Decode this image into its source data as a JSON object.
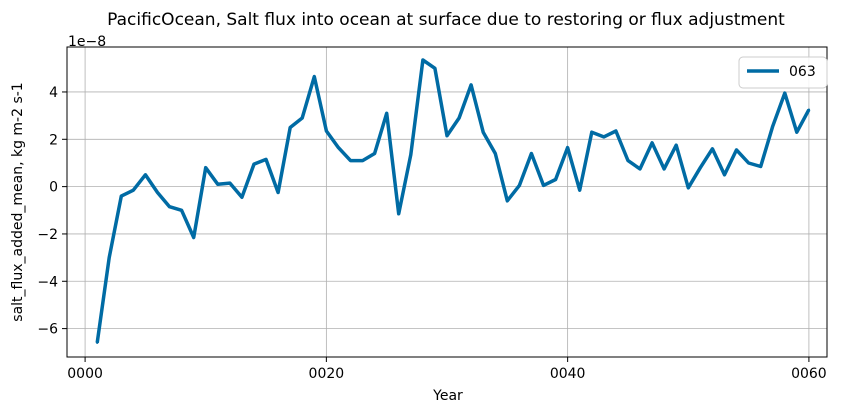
{
  "chart_data": {
    "type": "line",
    "title": "PacificOcean, Salt flux into ocean at surface due to restoring or flux adjustment",
    "xlabel": "Year",
    "ylabel": "salt_flux_added_mean, kg m-2 s-1",
    "y_offset_label": "1e−8",
    "xlim": [
      -1.5,
      61.5
    ],
    "ylim": [
      -7.2,
      5.9
    ],
    "x_ticks": [
      0,
      20,
      40,
      60
    ],
    "x_tick_labels": [
      "0000",
      "0020",
      "0040",
      "0060"
    ],
    "y_ticks": [
      -6,
      -4,
      -2,
      0,
      2,
      4
    ],
    "y_tick_labels": [
      "−6",
      "−4",
      "−2",
      "0",
      "2",
      "4"
    ],
    "grid": true,
    "legend_position": "top-right",
    "series": [
      {
        "name": "063",
        "color": "#006ba4",
        "x": [
          1,
          2,
          3,
          4,
          5,
          6,
          7,
          8,
          9,
          10,
          11,
          12,
          13,
          14,
          15,
          16,
          17,
          18,
          19,
          20,
          21,
          22,
          23,
          24,
          25,
          26,
          27,
          28,
          29,
          30,
          31,
          32,
          33,
          34,
          35,
          36,
          37,
          38,
          39,
          40,
          41,
          42,
          43,
          44,
          45,
          46,
          47,
          48,
          49,
          50,
          51,
          52,
          53,
          54,
          55,
          56,
          57,
          58,
          59,
          60
        ],
        "y": [
          -6.6,
          -3.0,
          -0.4,
          -0.15,
          0.5,
          -0.25,
          -0.85,
          -1.0,
          -2.15,
          0.8,
          0.1,
          0.15,
          -0.45,
          0.95,
          1.15,
          -0.25,
          2.5,
          2.9,
          4.65,
          2.35,
          1.65,
          1.1,
          1.1,
          1.4,
          3.1,
          -1.15,
          1.35,
          5.35,
          5.0,
          2.15,
          2.9,
          4.3,
          2.3,
          1.4,
          -0.6,
          0.05,
          1.4,
          0.05,
          0.3,
          1.65,
          -0.15,
          2.3,
          2.1,
          2.35,
          1.1,
          0.75,
          1.85,
          0.75,
          1.75,
          -0.05,
          0.8,
          1.6,
          0.5,
          1.55,
          1.0,
          0.85,
          2.55,
          3.95,
          2.3,
          3.25
        ]
      }
    ]
  }
}
